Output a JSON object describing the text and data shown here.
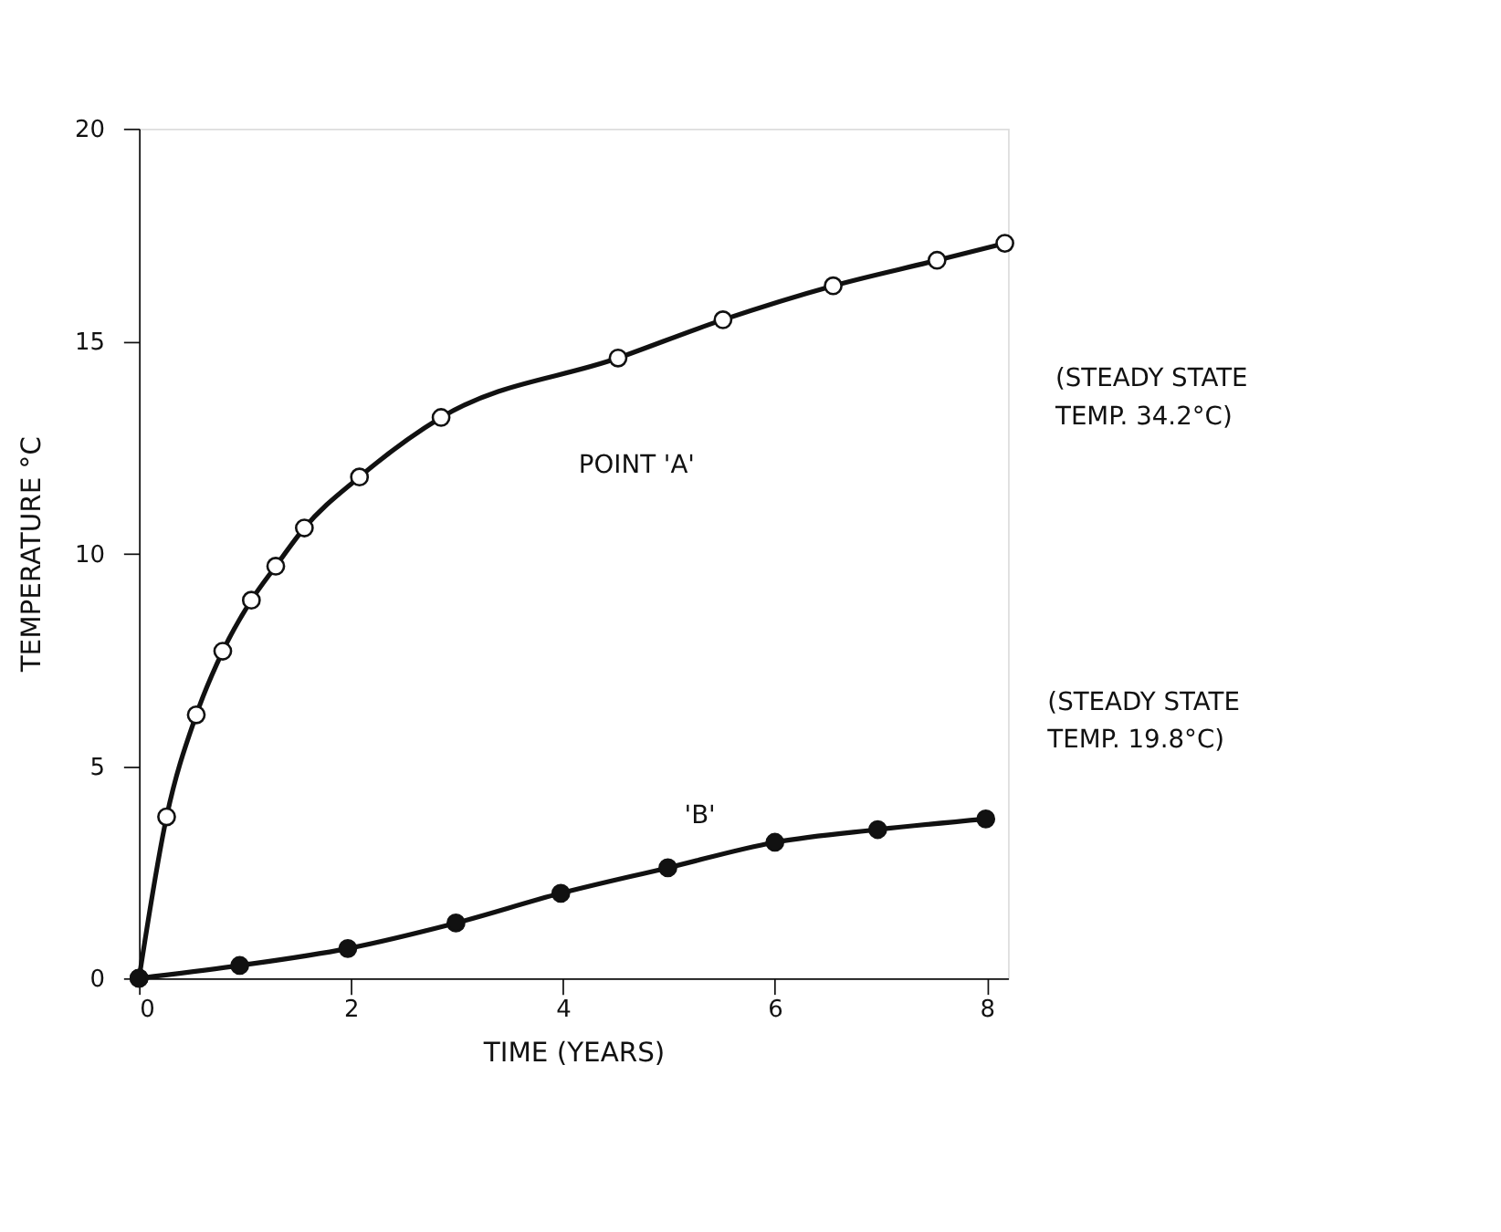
{
  "chart_data": {
    "type": "line",
    "xlabel": "TIME (YEARS)",
    "ylabel": "TEMPERATURE °C",
    "xlim": [
      0,
      8.2
    ],
    "xticks": [
      0,
      2,
      4,
      6,
      8
    ],
    "ylim": [
      0,
      20
    ],
    "yticks": [
      0,
      5,
      10,
      15,
      20
    ],
    "marker": "circle",
    "line_style": "solid",
    "series": [
      {
        "color": "#111111",
        "x": [
          0,
          0.26,
          0.54,
          0.79,
          1.06,
          1.29,
          1.56,
          2.08,
          2.85,
          4.52,
          5.51,
          6.55,
          7.53,
          8.17
        ],
        "values": [
          0,
          3.8,
          6.2,
          7.7,
          8.9,
          9.7,
          10.6,
          11.8,
          13.2,
          14.6,
          15.5,
          16.3,
          16.9,
          17.3
        ]
      },
      {
        "color": "#111111",
        "x": [
          0,
          0.95,
          1.97,
          2.99,
          3.98,
          4.99,
          6.0,
          6.97,
          7.99
        ],
        "values": [
          0,
          0.3,
          0.7,
          1.3,
          2.0,
          2.6,
          3.2,
          3.5,
          3.75
        ]
      }
    ],
    "annotations": [
      "POINT 'A'",
      "'B'",
      "(STEADY STATE\nTEMP. 34.2°C)",
      "(STEADY STATE\nTEMP. 19.8°C)"
    ]
  }
}
